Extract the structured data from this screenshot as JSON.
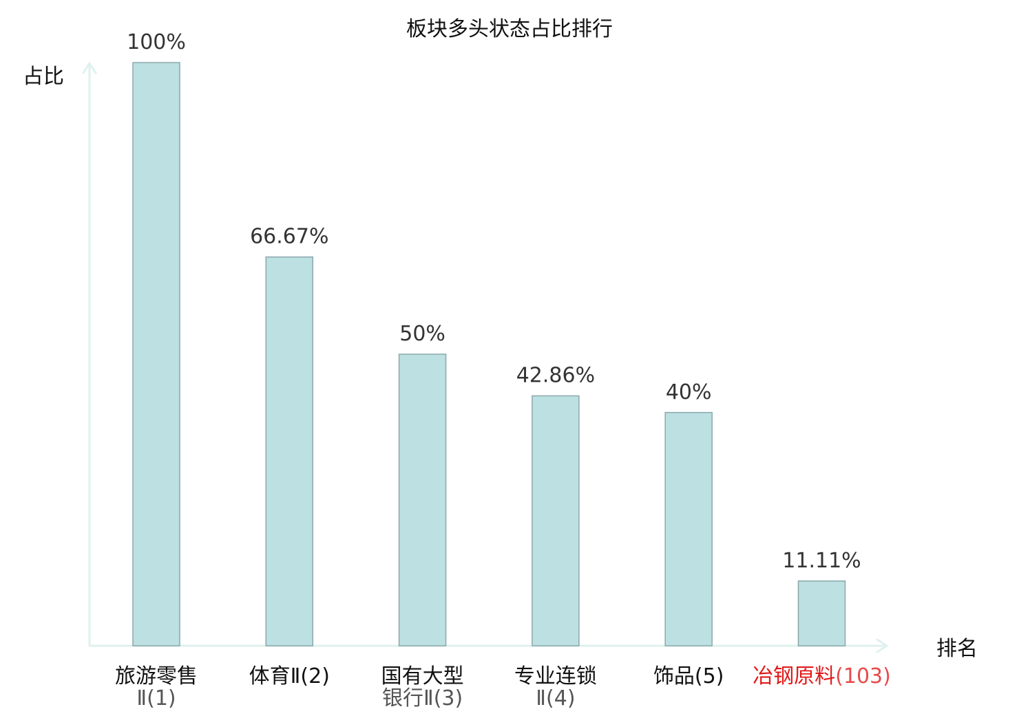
{
  "chart_data": {
    "type": "bar",
    "title": "板块多头状态占比排行",
    "ylabel": "占比",
    "xlabel": "排名",
    "ylim": [
      0,
      100
    ],
    "grid": false,
    "categories": [
      {
        "lines": [
          "旅游零售",
          "Ⅱ(1)"
        ],
        "highlight": false
      },
      {
        "lines": [
          "体育Ⅱ(2)"
        ],
        "highlight": false
      },
      {
        "lines": [
          "国有大型",
          "银行Ⅱ(3)"
        ],
        "highlight": false
      },
      {
        "lines": [
          "专业连锁",
          "Ⅱ(4)"
        ],
        "highlight": false
      },
      {
        "lines": [
          "饰品(5)"
        ],
        "highlight": false
      },
      {
        "lines": [
          [
            "冶钢原料",
            "(103)"
          ]
        ],
        "highlight": true
      }
    ],
    "values": [
      100,
      66.67,
      50,
      42.86,
      40,
      11.11
    ],
    "value_labels": [
      "100%",
      "66.67%",
      "50%",
      "42.86%",
      "40%",
      "11.11%"
    ],
    "colors": {
      "bar_fill": "#bde0e2",
      "bar_stroke": "#8aa8ab",
      "axis": "#dff1ee",
      "text": "#333333",
      "label_dark": "#111111",
      "label_gray": "#555555",
      "highlight_main": "#e01818",
      "highlight_sub": "#e84a4a"
    }
  }
}
